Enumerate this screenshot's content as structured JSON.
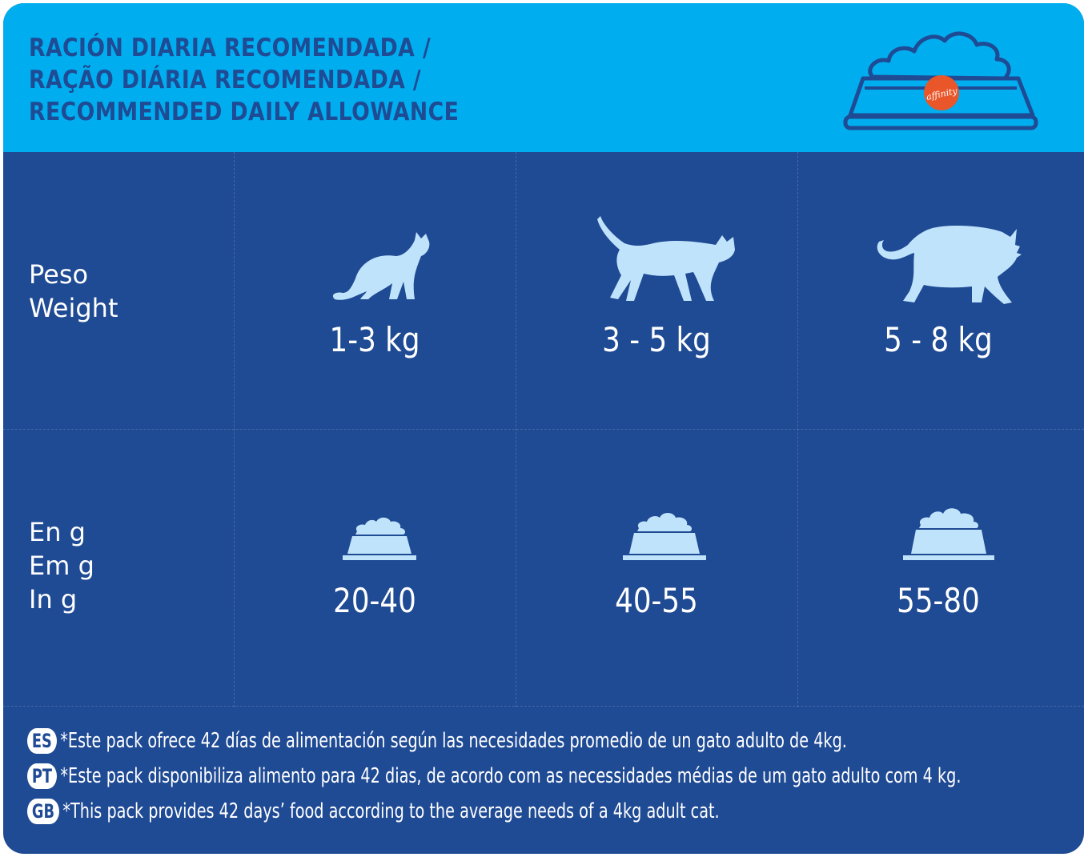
{
  "header": {
    "title_es": "RACIÓN DIARIA RECOMENDADA /",
    "title_pt": "RAÇÃO DIÁRIA RECOMENDADA /",
    "title_en": "RECOMMENDED DAILY ALLOWANCE",
    "logo_text": "affinity",
    "logo_color": "#e8562a"
  },
  "colors": {
    "header_bg": "#00aef0",
    "body_bg": "#1f4a94",
    "icon_fill": "#bfe3fa"
  },
  "weight_row": {
    "label_es": "Peso",
    "label_en": "Weight",
    "icons": [
      "small-cat-sitting-icon",
      "medium-cat-walking-icon",
      "large-cat-walking-icon"
    ],
    "values": [
      "1-3 kg",
      "3 - 5 kg",
      "5 - 8 kg"
    ]
  },
  "grams_row": {
    "label_es": "En g",
    "label_pt": "Em g",
    "label_en": "In g",
    "icons": [
      "small-food-bowl-icon",
      "medium-food-bowl-icon",
      "large-food-bowl-icon"
    ],
    "values": [
      "20-40",
      "40-55",
      "55-80"
    ]
  },
  "footnotes": [
    {
      "badge": "ES",
      "text": "*Este pack ofrece 42 días de alimentación según las necesidades promedio de un gato adulto de 4kg."
    },
    {
      "badge": "PT",
      "text": "*Este pack disponibiliza alimento para 42 dias, de acordo com as necessidades médias de um gato adulto com 4 kg."
    },
    {
      "badge": "GB",
      "text": "*This pack provides 42 days’ food according to the average needs of a 4kg adult cat."
    }
  ]
}
